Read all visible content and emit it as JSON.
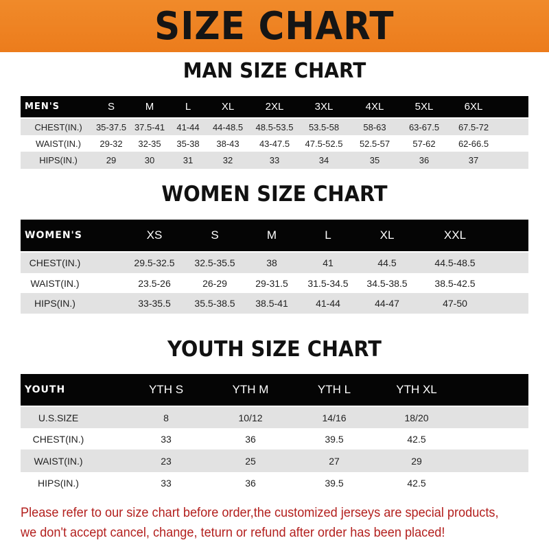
{
  "banner_title": "SIZE CHART",
  "men": {
    "title": "MAN SIZE CHART",
    "header": [
      "MEN'S",
      "S",
      "M",
      "L",
      "XL",
      "2XL",
      "3XL",
      "4XL",
      "5XL",
      "6XL"
    ],
    "rows": [
      [
        "CHEST(IN.)",
        "35-37.5",
        "37.5-41",
        "41-44",
        "44-48.5",
        "48.5-53.5",
        "53.5-58",
        "58-63",
        "63-67.5",
        "67.5-72"
      ],
      [
        "WAIST(IN.)",
        "29-32",
        "32-35",
        "35-38",
        "38-43",
        "43-47.5",
        "47.5-52.5",
        "52.5-57",
        "57-62",
        "62-66.5"
      ],
      [
        "HIPS(IN.)",
        "29",
        "30",
        "31",
        "32",
        "33",
        "34",
        "35",
        "36",
        "37"
      ]
    ]
  },
  "women": {
    "title": "WOMEN SIZE CHART",
    "header": [
      "WOMEN'S",
      "XS",
      "S",
      "M",
      "L",
      "XL",
      "XXL"
    ],
    "rows": [
      [
        "CHEST(IN.)",
        "29.5-32.5",
        "32.5-35.5",
        "38",
        "41",
        "44.5",
        "44.5-48.5"
      ],
      [
        "WAIST(IN.)",
        "23.5-26",
        "26-29",
        "29-31.5",
        "31.5-34.5",
        "34.5-38.5",
        "38.5-42.5"
      ],
      [
        "HIPS(IN.)",
        "33-35.5",
        "35.5-38.5",
        "38.5-41",
        "41-44",
        "44-47",
        "47-50"
      ]
    ]
  },
  "youth": {
    "title": "YOUTH SIZE CHART",
    "header": [
      "YOUTH",
      "YTH S",
      "YTH M",
      "YTH L",
      "YTH XL"
    ],
    "rows": [
      [
        "U.S.SIZE",
        "8",
        "10/12",
        "14/16",
        "18/20"
      ],
      [
        "CHEST(IN.)",
        "33",
        "36",
        "39.5",
        "42.5"
      ],
      [
        "WAIST(IN.)",
        "23",
        "25",
        "27",
        "29"
      ],
      [
        "HIPS(IN.)",
        "33",
        "36",
        "39.5",
        "42.5"
      ]
    ]
  },
  "notice": {
    "line1": "Please refer to our size chart before order,the customized jerseys are special products,",
    "line2": "we don't accept cancel, change, teturn or refund after order has been placed!"
  },
  "colors": {
    "banner": "#ec7c1c",
    "header_row": "#050505",
    "stripe": "#e2e2e2",
    "notice": "#b3201e"
  }
}
